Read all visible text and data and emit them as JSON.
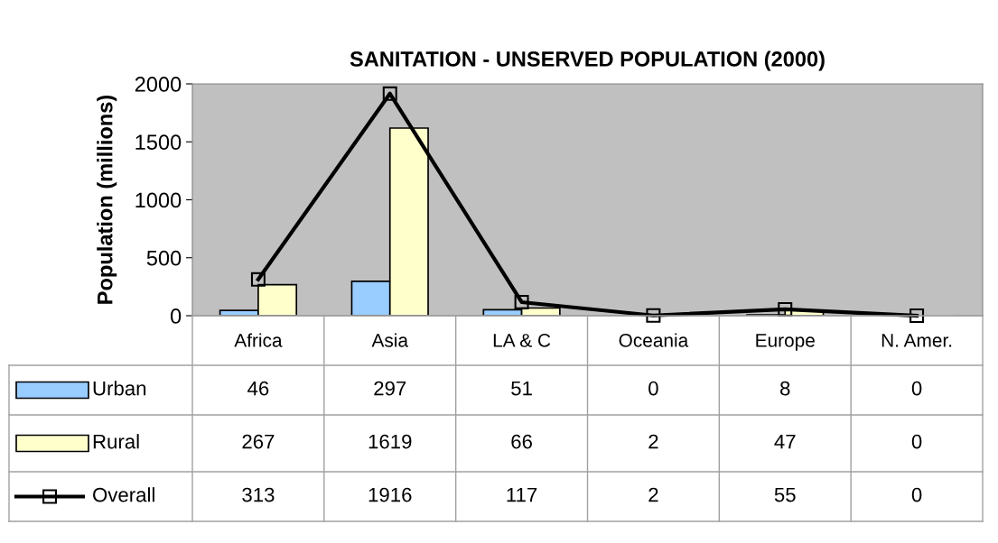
{
  "chart_data": {
    "type": "bar",
    "title": "SANITATION - UNSERVED POPULATION (2000)",
    "ylabel": "Population (millions)",
    "categories": [
      "Africa",
      "Asia",
      "LA & C",
      "Oceania",
      "Europe",
      "N. Amer."
    ],
    "series": [
      {
        "name": "Urban",
        "color": "#99ccff",
        "values": [
          46,
          297,
          51,
          0,
          8,
          0
        ]
      },
      {
        "name": "Rural",
        "color": "#ffffcc",
        "values": [
          267,
          1619,
          66,
          2,
          47,
          0
        ]
      },
      {
        "name": "Overall",
        "type": "line",
        "color": "#000000",
        "marker": "square",
        "values": [
          313,
          1916,
          117,
          2,
          55,
          0
        ]
      }
    ],
    "ylim": [
      0,
      2000
    ],
    "yticks": [
      0,
      500,
      1000,
      1500,
      2000
    ],
    "grid": false,
    "legend": "bottom left",
    "data_labels": true
  }
}
